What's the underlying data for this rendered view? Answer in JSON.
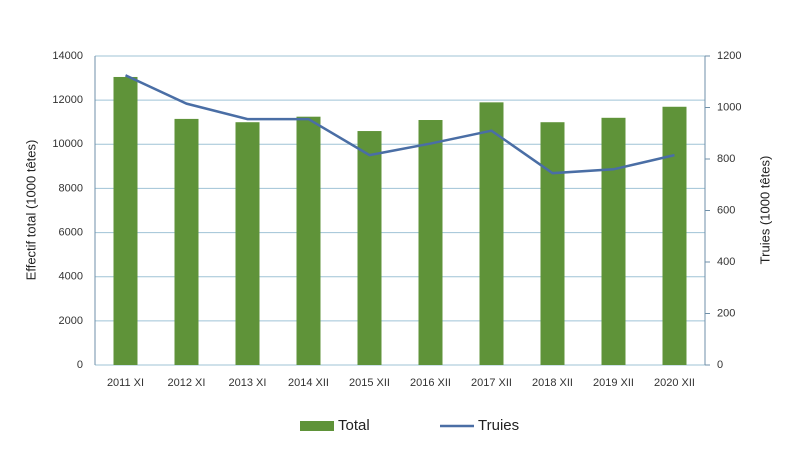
{
  "chart_data": {
    "type": "bar-line",
    "categories": [
      "2011 XI",
      "2012 XI",
      "2013 XI",
      "2014 XII",
      "2015 XII",
      "2016 XII",
      "2017 XII",
      "2018 XII",
      "2019 XII",
      "2020 XII"
    ],
    "y_label": "Effectif total (1000 têtes)",
    "y2_label": "Truies (1000 têtes)",
    "series": [
      {
        "name": "Total",
        "type": "bar",
        "color": "#5f9339",
        "values": [
          13050,
          11150,
          11000,
          11250,
          10600,
          11100,
          11900,
          11000,
          11200,
          11700
        ]
      },
      {
        "name": "Truies",
        "type": "line",
        "axis": "y2",
        "color": "#4a6ea5",
        "values": [
          1125,
          1015,
          955,
          955,
          815,
          860,
          910,
          745,
          760,
          815
        ]
      }
    ],
    "ylim": [
      0,
      14000
    ],
    "yticks": [
      0,
      2000,
      4000,
      6000,
      8000,
      10000,
      12000,
      14000
    ],
    "y2lim": [
      0,
      1200
    ],
    "y2ticks": [
      0,
      200,
      400,
      600,
      800,
      1000,
      1200
    ],
    "grid": true,
    "legend": "bottom"
  }
}
